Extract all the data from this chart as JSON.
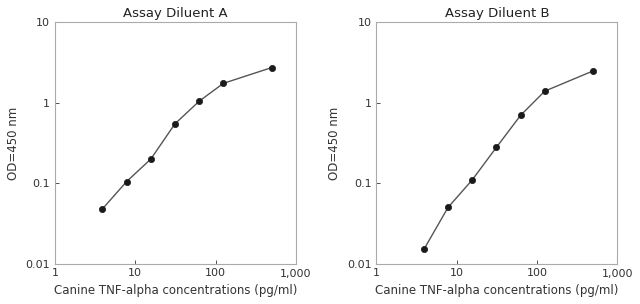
{
  "title_A": "Assay Diluent A",
  "title_B": "Assay Diluent B",
  "xlabel": "Canine TNF-alpha concentrations (pg/ml)",
  "ylabel": "OD=450 nm",
  "x_A": [
    3.9,
    7.8,
    15.6,
    31.25,
    62.5,
    125,
    500
  ],
  "y_A": [
    0.048,
    0.105,
    0.2,
    0.55,
    1.05,
    1.75,
    2.75
  ],
  "x_B": [
    3.9,
    7.8,
    15.6,
    31.25,
    62.5,
    125,
    500
  ],
  "y_B": [
    0.015,
    0.05,
    0.11,
    0.28,
    0.7,
    1.4,
    2.5
  ],
  "xlim": [
    2,
    1000
  ],
  "ylim": [
    0.01,
    10
  ],
  "xticks": [
    1,
    10,
    100,
    1000
  ],
  "xtick_labels": [
    "1",
    "10",
    "100",
    "1,000"
  ],
  "yticks": [
    0.01,
    0.1,
    1,
    10
  ],
  "ytick_labels": [
    "0.01",
    "0.1",
    "1",
    "10"
  ],
  "line_color": "#555555",
  "marker_color": "#1a1a1a",
  "title_color": "#222222",
  "tick_color": "#333333",
  "label_color": "#333333",
  "axis_color": "#aaaaaa",
  "background_color": "#ffffff",
  "title_fontsize": 9.5,
  "label_fontsize": 8.5,
  "tick_fontsize": 8
}
